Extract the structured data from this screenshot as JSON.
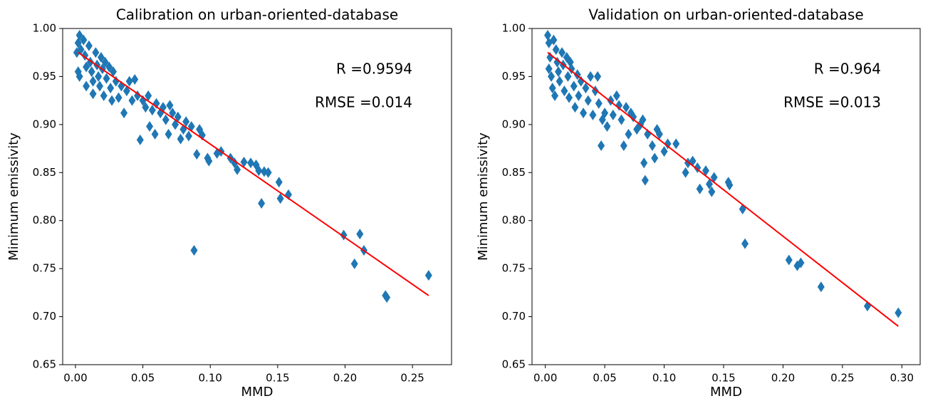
{
  "chart_data": [
    {
      "type": "scatter",
      "title": "Calibration on urban-oriented-database",
      "x_label": "MMD",
      "y_label": "Minimum emissivity",
      "xlim": [
        -0.0095,
        0.279
      ],
      "ylim": [
        0.65,
        1.0
      ],
      "xticks": [
        {
          "value": 0,
          "label": "0.00"
        },
        0.05,
        {
          "value": 0.1,
          "label": "0.10"
        },
        0.15,
        {
          "value": 0.2,
          "label": "0.20"
        },
        0.25
      ],
      "yticks": [
        0.65,
        {
          "value": 0.7,
          "label": "0.70"
        },
        0.75,
        {
          "value": 0.8,
          "label": "0.80"
        },
        0.85,
        {
          "value": 0.9,
          "label": "0.90"
        },
        0.95,
        {
          "value": 1.0,
          "label": "1.00"
        }
      ],
      "annotations": [
        "R =0.9594",
        "RMSE =0.014"
      ],
      "series": [
        {
          "type": "scatter",
          "marker": "diamond",
          "color": "#1f77b4",
          "x": [
            0.003,
            0.002,
            0.004,
            0.001,
            0.002,
            0.003,
            0.006,
            0.007,
            0.008,
            0.008,
            0.01,
            0.011,
            0.012,
            0.013,
            0.013,
            0.015,
            0.016,
            0.017,
            0.018,
            0.019,
            0.02,
            0.021,
            0.022,
            0.023,
            0.025,
            0.026,
            0.027,
            0.028,
            0.03,
            0.032,
            0.034,
            0.036,
            0.038,
            0.04,
            0.042,
            0.044,
            0.046,
            0.048,
            0.05,
            0.052,
            0.054,
            0.055,
            0.057,
            0.059,
            0.06,
            0.063,
            0.065,
            0.067,
            0.069,
            0.07,
            0.072,
            0.074,
            0.076,
            0.078,
            0.08,
            0.082,
            0.084,
            0.086,
            0.088,
            0.09,
            0.092,
            0.094,
            0.098,
            0.099,
            0.105,
            0.108,
            0.115,
            0.118,
            0.12,
            0.125,
            0.13,
            0.134,
            0.136,
            0.138,
            0.14,
            0.143,
            0.151,
            0.152,
            0.158,
            0.199,
            0.211,
            0.214,
            0.207,
            0.23,
            0.231,
            0.262
          ],
          "values": [
            0.993,
            0.985,
            0.978,
            0.975,
            0.955,
            0.95,
            0.988,
            0.972,
            0.96,
            0.94,
            0.982,
            0.965,
            0.955,
            0.945,
            0.932,
            0.975,
            0.962,
            0.95,
            0.94,
            0.97,
            0.958,
            0.93,
            0.965,
            0.948,
            0.96,
            0.938,
            0.925,
            0.955,
            0.945,
            0.928,
            0.94,
            0.912,
            0.935,
            0.945,
            0.925,
            0.947,
            0.93,
            0.884,
            0.925,
            0.918,
            0.93,
            0.898,
            0.915,
            0.89,
            0.922,
            0.912,
            0.918,
            0.905,
            0.89,
            0.92,
            0.912,
            0.9,
            0.908,
            0.885,
            0.895,
            0.903,
            0.888,
            0.898,
            0.769,
            0.869,
            0.895,
            0.889,
            0.865,
            0.862,
            0.87,
            0.872,
            0.865,
            0.86,
            0.853,
            0.861,
            0.86,
            0.858,
            0.852,
            0.818,
            0.851,
            0.85,
            0.84,
            0.823,
            0.827,
            0.785,
            0.786,
            0.769,
            0.755,
            0.722,
            0.72,
            0.743
          ]
        },
        {
          "type": "line",
          "color": "#ff0000",
          "x": [
            0.002,
            0.262
          ],
          "values": [
            0.975,
            0.722
          ]
        }
      ]
    },
    {
      "type": "scatter",
      "title": "Validation on urban-oriented-database",
      "x_label": "MMD",
      "y_label": "Minimum emissivity",
      "xlim": [
        -0.0112,
        0.3154
      ],
      "ylim": [
        0.65,
        1.0
      ],
      "xticks": [
        {
          "value": 0,
          "label": "0.00"
        },
        0.05,
        {
          "value": 0.1,
          "label": "0.10"
        },
        0.15,
        {
          "value": 0.2,
          "label": "0.20"
        },
        0.25,
        {
          "value": 0.3,
          "label": "0.30"
        }
      ],
      "yticks": [
        0.65,
        {
          "value": 0.7,
          "label": "0.70"
        },
        0.75,
        {
          "value": 0.8,
          "label": "0.80"
        },
        0.85,
        {
          "value": 0.9,
          "label": "0.90"
        },
        0.95,
        {
          "value": 1.0,
          "label": "1.00"
        }
      ],
      "annotations": [
        "R =0.964",
        "RMSE =0.013"
      ],
      "series": [
        {
          "type": "scatter",
          "marker": "diamond",
          "color": "#1f77b4",
          "x": [
            0.002,
            0.003,
            0.004,
            0.003,
            0.005,
            0.006,
            0.008,
            0.007,
            0.009,
            0.01,
            0.011,
            0.012,
            0.014,
            0.015,
            0.016,
            0.018,
            0.019,
            0.02,
            0.021,
            0.022,
            0.024,
            0.025,
            0.027,
            0.028,
            0.03,
            0.032,
            0.034,
            0.036,
            0.038,
            0.04,
            0.042,
            0.044,
            0.045,
            0.047,
            0.048,
            0.05,
            0.052,
            0.055,
            0.057,
            0.06,
            0.062,
            0.064,
            0.066,
            0.068,
            0.07,
            0.072,
            0.074,
            0.077,
            0.08,
            0.082,
            0.083,
            0.084,
            0.086,
            0.09,
            0.092,
            0.094,
            0.096,
            0.1,
            0.103,
            0.11,
            0.118,
            0.12,
            0.124,
            0.128,
            0.13,
            0.135,
            0.138,
            0.14,
            0.142,
            0.154,
            0.155,
            0.166,
            0.168,
            0.205,
            0.212,
            0.215,
            0.232,
            0.271,
            0.297
          ],
          "values": [
            0.993,
            0.985,
            0.97,
            0.958,
            0.95,
            0.938,
            0.93,
            0.988,
            0.978,
            0.965,
            0.955,
            0.945,
            0.975,
            0.962,
            0.935,
            0.97,
            0.95,
            0.928,
            0.965,
            0.958,
            0.94,
            0.918,
            0.952,
            0.93,
            0.945,
            0.912,
            0.938,
            0.925,
            0.95,
            0.91,
            0.935,
            0.95,
            0.922,
            0.878,
            0.905,
            0.912,
            0.898,
            0.925,
            0.91,
            0.93,
            0.92,
            0.905,
            0.878,
            0.918,
            0.89,
            0.912,
            0.908,
            0.895,
            0.9,
            0.905,
            0.86,
            0.842,
            0.89,
            0.878,
            0.865,
            0.895,
            0.89,
            0.872,
            0.88,
            0.88,
            0.85,
            0.86,
            0.862,
            0.855,
            0.833,
            0.852,
            0.838,
            0.83,
            0.845,
            0.84,
            0.837,
            0.812,
            0.776,
            0.759,
            0.753,
            0.756,
            0.731,
            0.711,
            0.704
          ]
        },
        {
          "type": "line",
          "color": "#ff0000",
          "x": [
            0.002,
            0.297
          ],
          "values": [
            0.975,
            0.69
          ]
        }
      ]
    }
  ]
}
